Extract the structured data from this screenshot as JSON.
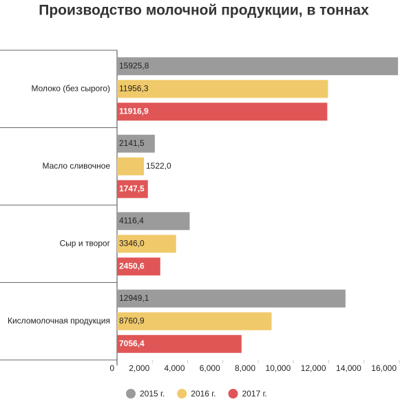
{
  "chart_data": {
    "type": "hbar",
    "title": "Производство молочной продукции, в тоннах",
    "categories": [
      "Молоко (без сырого)",
      "Масло сливочное",
      "Сыр и творог",
      "Кисломолочная продукция"
    ],
    "series": [
      {
        "name": "2015 г.",
        "color": "#9b9b9b",
        "values": [
          15925.8,
          2141.5,
          4116.4,
          12949.1
        ],
        "value_labels": [
          "15925,8",
          "2141,5",
          "4116,4",
          "12949,1"
        ]
      },
      {
        "name": "2016 г.",
        "color": "#f0c96a",
        "values": [
          11956.3,
          1522.0,
          3346.0,
          8760.9
        ],
        "value_labels": [
          "11956,3",
          "1522,0",
          "3346,0",
          "8760,9"
        ]
      },
      {
        "name": "2017 г.",
        "color": "#e05656",
        "values": [
          11916.9,
          1747.5,
          2450.6,
          7056.4
        ],
        "value_labels": [
          "11916,9",
          "1747,5",
          "2450,6",
          "7056,4"
        ]
      }
    ],
    "xlim": [
      0,
      16000
    ],
    "xticks": [
      0,
      {
        "value": 2000,
        "label": "2,000"
      },
      {
        "value": 4000,
        "label": "4,000"
      },
      {
        "value": 6000,
        "label": "6,000"
      },
      {
        "value": 8000,
        "label": "8,000"
      },
      {
        "value": 10000,
        "label": "10,000"
      },
      {
        "value": 12000,
        "label": "12,000"
      },
      {
        "value": 14000,
        "label": "14,000"
      },
      {
        "value": 16000,
        "label": "16,000"
      }
    ],
    "legend": "bottom"
  }
}
